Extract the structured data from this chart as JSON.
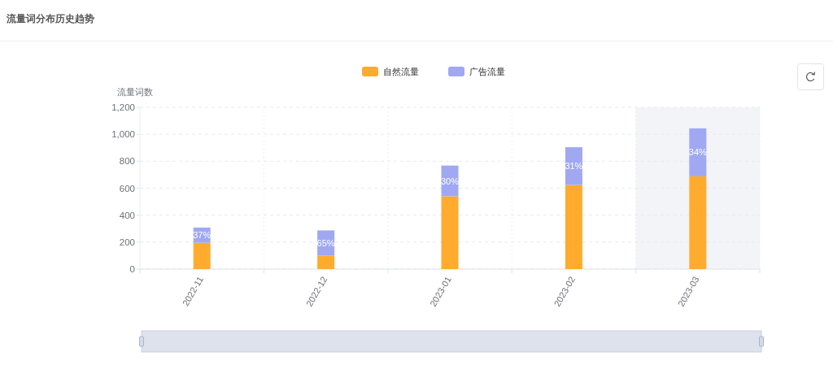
{
  "chart_data": {
    "type": "bar",
    "title": "流量词分布历史趋势",
    "ylabel": "流量词数",
    "categories": [
      "2022-11",
      "2022-12",
      "2023-01",
      "2023-02",
      "2023-03"
    ],
    "series": [
      {
        "name": "自然流量",
        "color": "#ffab2e",
        "values": [
          195,
          100,
          540,
          624,
          688
        ]
      },
      {
        "name": "广告流量",
        "color": "#a0a8f2",
        "values": [
          113,
          187,
          228,
          280,
          356
        ]
      }
    ],
    "stacked": true,
    "ylim": [
      0,
      1200
    ],
    "yticks": [
      0,
      200,
      400,
      600,
      800,
      {
        "value": 1000,
        "label": "1,000"
      },
      {
        "value": 1200,
        "label": "1,200"
      }
    ],
    "grid": true,
    "legend": "top",
    "bands": [
      {
        "axis": "x",
        "from": "2023-03",
        "to": "2023-03",
        "color": "#f3f4f8"
      }
    ],
    "annotations": [
      {
        "text": "37%",
        "x": "2022-11",
        "y": 252
      },
      {
        "text": "65%",
        "x": "2022-12",
        "y": 194
      },
      {
        "text": "30%",
        "x": "2023-01",
        "y": 654
      },
      {
        "text": "31%",
        "x": "2023-02",
        "y": 764
      },
      {
        "text": "34%",
        "x": "2023-03",
        "y": 866
      }
    ]
  }
}
